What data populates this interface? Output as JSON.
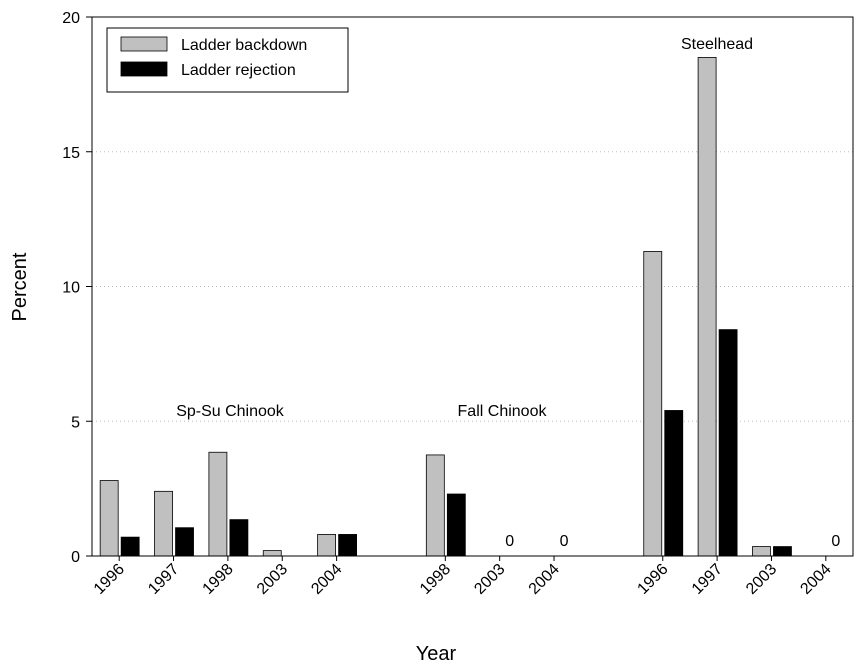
{
  "chart_data": {
    "type": "bar",
    "x_label": "Year",
    "y_label": "Percent",
    "categories": [
      "1996",
      "1997",
      "1998",
      "2003",
      "2004",
      null,
      "1998",
      "2003",
      "2004",
      null,
      "1996",
      "1997",
      "2003",
      "2004"
    ],
    "series": [
      {
        "name": "Ladder backdown",
        "color": "#c0c0c0",
        "values": [
          2.8,
          2.4,
          3.85,
          0.2,
          0.8,
          null,
          3.75,
          0,
          0,
          null,
          11.3,
          18.5,
          0.35,
          0
        ]
      },
      {
        "name": "Ladder rejection",
        "color": "#000000",
        "values": [
          0.7,
          1.05,
          1.35,
          0,
          0.8,
          null,
          2.3,
          0,
          0,
          null,
          5.4,
          8.4,
          0.35,
          0
        ],
        "value_labels": [
          null,
          null,
          null,
          null,
          null,
          null,
          null,
          "0",
          "0",
          null,
          null,
          null,
          null,
          "0"
        ]
      }
    ],
    "annotations": [
      "Sp-Su Chinook",
      "Fall Chinook",
      "Steelhead"
    ],
    "ylim": [
      0,
      20
    ],
    "yticks": [
      0,
      5,
      10,
      15,
      20
    ],
    "grid": true,
    "legend": "upper-left"
  }
}
